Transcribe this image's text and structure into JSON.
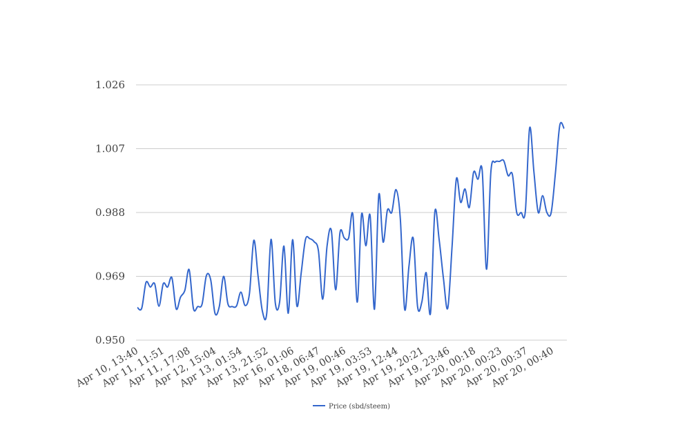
{
  "chart_data": {
    "type": "line",
    "title": "",
    "xlabel": "",
    "ylabel": "",
    "ylim": [
      0.95,
      1.026
    ],
    "yticks": [
      "0.950",
      "0.969",
      "0.988",
      "1.007",
      "1.026"
    ],
    "ytick_values": [
      0.95,
      0.969,
      0.988,
      1.007,
      1.026
    ],
    "xticks": [
      "Apr 10, 13:40",
      "Apr 11, 11:51",
      "Apr 11, 17:08",
      "Apr 12, 15:04",
      "Apr 13, 01:54",
      "Apr 13, 21:52",
      "Apr 16, 01:06",
      "Apr 18, 06:47",
      "Apr 19, 00:46",
      "Apr 19, 03:53",
      "Apr 19, 12:44",
      "Apr 19, 20:21",
      "Apr 19, 23:46",
      "Apr 20, 00:18",
      "Apr 20, 00:23",
      "Apr 20, 00:37",
      "Apr 20, 00:40"
    ],
    "grid": true,
    "legend": "bottom",
    "series": [
      {
        "name": "Price (sbd/steem)",
        "color": "#3366cc",
        "values": [
          0.9597,
          0.9595,
          0.9672,
          0.9658,
          0.9668,
          0.9601,
          0.9668,
          0.9658,
          0.9686,
          0.9593,
          0.9628,
          0.9648,
          0.971,
          0.9594,
          0.96,
          0.9607,
          0.9692,
          0.968,
          0.958,
          0.96,
          0.969,
          0.9608,
          0.96,
          0.9602,
          0.9643,
          0.9603,
          0.9639,
          0.9797,
          0.969,
          0.9586,
          0.9579,
          0.98,
          0.961,
          0.9614,
          0.978,
          0.958,
          0.9799,
          0.9602,
          0.97,
          0.98,
          0.9802,
          0.9793,
          0.9766,
          0.9622,
          0.978,
          0.9826,
          0.965,
          0.982,
          0.9804,
          0.9804,
          0.9873,
          0.9613,
          0.9874,
          0.9781,
          0.987,
          0.9592,
          0.9932,
          0.9792,
          0.9887,
          0.988,
          0.9948,
          0.9861,
          0.9592,
          0.972,
          0.9803,
          0.96,
          0.9614,
          0.9701,
          0.958,
          0.9881,
          0.98,
          0.9684,
          0.9595,
          0.9778,
          0.998,
          0.991,
          0.995,
          0.9895,
          1.0,
          0.9979,
          1.0004,
          0.9711,
          1.0,
          1.003,
          1.0032,
          1.0034,
          0.999,
          0.9993,
          0.988,
          0.988,
          0.9883,
          1.0132,
          1.0,
          0.988,
          0.993,
          0.988,
          0.988,
          1.0,
          1.014,
          1.013
        ]
      }
    ]
  }
}
